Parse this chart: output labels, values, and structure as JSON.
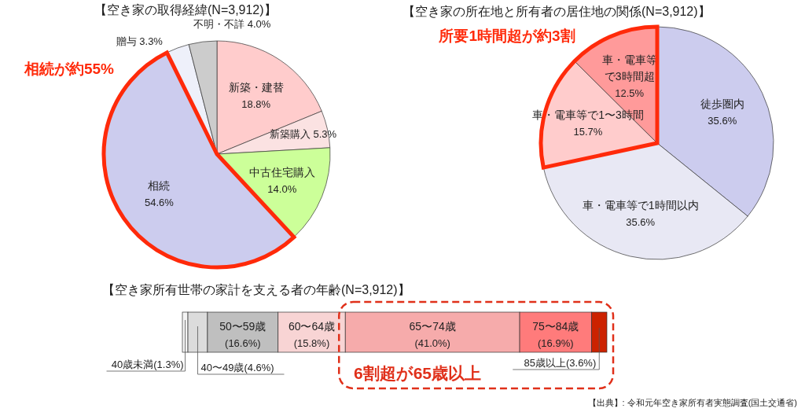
{
  "chart_data": [
    {
      "type": "pie",
      "title": "【空き家の取得経緯(N=3,912)】",
      "categories": [
        "新築・建替",
        "新築購入",
        "中古住宅購入",
        "相続",
        "贈与",
        "不明・不詳"
      ],
      "values": [
        18.8,
        5.3,
        14.0,
        54.6,
        3.3,
        4.0
      ],
      "value_labels": [
        "18.8%",
        "5.3%",
        "14.0%",
        "54.6%",
        "3.3%",
        "4.0%"
      ],
      "colors": [
        "#ffcccc",
        "#fbe2e2",
        "#ccff99",
        "#ccccee",
        "#eef0fa",
        "#cccccc"
      ],
      "annotations": [
        "相続が約55%"
      ]
    },
    {
      "type": "pie",
      "title": "【空き家の所在地と所有者の居住地の関係(N=3,912)】",
      "categories": [
        "徒歩圏内",
        "車・電車等で1時間以内",
        "車・電車等で1〜3時間",
        "車・電車等で3時間超"
      ],
      "values": [
        35.6,
        35.6,
        15.7,
        12.5
      ],
      "value_labels": [
        "35.6%",
        "35.6%",
        "15.7%",
        "12.5%"
      ],
      "colors": [
        "#ccccee",
        "#e8e8f4",
        "#ffcccc",
        "#ff9a9a"
      ],
      "annotations": [
        "所要1時間超が約3割"
      ]
    },
    {
      "type": "bar",
      "orientation": "horizontal",
      "stacked": true,
      "title": "【空き家所有世帯の家計を支える者の年齢(N=3,912)】",
      "categories": [
        null
      ],
      "series": [
        {
          "name": "40歳未満",
          "color": "#f4f4f4",
          "values": [
            1.3
          ],
          "value_labels": [
            "(1.3%)"
          ]
        },
        {
          "name": "40〜49歳",
          "color": "#dcdcdc",
          "values": [
            4.6
          ],
          "value_labels": [
            "(4.6%)"
          ]
        },
        {
          "name": "50〜59歳",
          "color": "#bfbfbf",
          "values": [
            16.6
          ],
          "value_labels": [
            "(16.6%)"
          ]
        },
        {
          "name": "60〜64歳",
          "color": "#f8d4d4",
          "values": [
            15.8
          ],
          "value_labels": [
            "(15.8%)"
          ]
        },
        {
          "name": "65〜74歳",
          "color": "#f6abab",
          "values": [
            41.0
          ],
          "value_labels": [
            "(41.0%)"
          ]
        },
        {
          "name": "75〜84歳",
          "color": "#ff7b7b",
          "values": [
            16.9
          ],
          "value_labels": [
            "(16.9%)"
          ]
        },
        {
          "name": "85歳以上",
          "color": "#cc2200",
          "values": [
            3.6
          ],
          "value_labels": [
            "(3.6%)"
          ]
        }
      ],
      "annotations": [
        "6割超が65歳以上",
        "【出典】: 令和元年空き家所有者実態調査(国土交通省)"
      ]
    }
  ]
}
